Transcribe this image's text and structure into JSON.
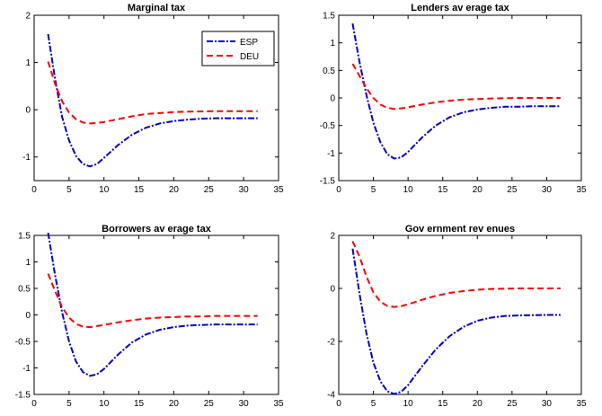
{
  "chart_data": [
    {
      "type": "line",
      "title": "Marginal tax",
      "xlim": [
        0,
        35
      ],
      "ylim": [
        -1.5,
        2
      ],
      "xticks": [
        0,
        5,
        10,
        15,
        20,
        25,
        30,
        35
      ],
      "yticks": [
        -1,
        0,
        1,
        2
      ],
      "grid": false,
      "legend": "top-right",
      "series": [
        {
          "name": "ESP",
          "color": "#0000cc",
          "style": "dash-dot",
          "x": [
            2,
            3,
            4,
            5,
            6,
            7,
            8,
            9,
            10,
            12,
            14,
            16,
            18,
            20,
            22,
            24,
            26,
            28,
            30,
            32
          ],
          "y": [
            1.6,
            0.65,
            -0.15,
            -0.65,
            -0.98,
            -1.15,
            -1.2,
            -1.15,
            -1.02,
            -0.75,
            -0.53,
            -0.38,
            -0.29,
            -0.24,
            -0.21,
            -0.19,
            -0.18,
            -0.18,
            -0.18,
            -0.18
          ]
        },
        {
          "name": "DEU",
          "color": "#ff0000",
          "style": "dashed",
          "x": [
            2,
            3,
            4,
            5,
            6,
            7,
            8,
            9,
            10,
            12,
            14,
            16,
            18,
            20,
            22,
            24,
            26,
            28,
            30,
            32
          ],
          "y": [
            1.02,
            0.55,
            0.18,
            -0.06,
            -0.2,
            -0.27,
            -0.29,
            -0.28,
            -0.26,
            -0.2,
            -0.14,
            -0.09,
            -0.07,
            -0.05,
            -0.04,
            -0.035,
            -0.03,
            -0.03,
            -0.03,
            -0.03
          ]
        }
      ]
    },
    {
      "type": "line",
      "title": "Lenders av erage tax",
      "xlim": [
        0,
        35
      ],
      "ylim": [
        -1.5,
        1.5
      ],
      "xticks": [
        0,
        5,
        10,
        15,
        20,
        25,
        30,
        35
      ],
      "yticks": [
        -1.5,
        -1,
        -0.5,
        0,
        0.5,
        1,
        1.5
      ],
      "grid": false,
      "series": [
        {
          "color": "#0000cc",
          "style": "dash-dot",
          "x": [
            2,
            3,
            4,
            5,
            6,
            7,
            8,
            9,
            10,
            12,
            14,
            16,
            18,
            20,
            22,
            24,
            26,
            28,
            30,
            32
          ],
          "y": [
            1.35,
            0.65,
            0.05,
            -0.45,
            -0.8,
            -1.02,
            -1.1,
            -1.08,
            -0.98,
            -0.72,
            -0.5,
            -0.35,
            -0.26,
            -0.21,
            -0.18,
            -0.16,
            -0.16,
            -0.15,
            -0.15,
            -0.15
          ]
        },
        {
          "color": "#ff0000",
          "style": "dashed",
          "x": [
            2,
            3,
            4,
            5,
            6,
            7,
            8,
            9,
            10,
            12,
            14,
            16,
            18,
            20,
            22,
            24,
            26,
            28,
            30,
            32
          ],
          "y": [
            0.62,
            0.4,
            0.18,
            0.0,
            -0.12,
            -0.18,
            -0.2,
            -0.19,
            -0.17,
            -0.12,
            -0.08,
            -0.05,
            -0.03,
            -0.02,
            -0.01,
            -0.005,
            0.0,
            0.0,
            0.0,
            0.0
          ]
        }
      ]
    },
    {
      "type": "line",
      "title": "Borrowers av erage tax",
      "xlim": [
        0,
        35
      ],
      "ylim": [
        -1.5,
        1.5
      ],
      "xticks": [
        0,
        5,
        10,
        15,
        20,
        25,
        30,
        35
      ],
      "yticks": [
        -1.5,
        -1,
        -0.5,
        0,
        0.5,
        1,
        1.5
      ],
      "grid": false,
      "series": [
        {
          "color": "#0000cc",
          "style": "dash-dot",
          "x": [
            2,
            3,
            4,
            5,
            6,
            7,
            8,
            9,
            10,
            12,
            14,
            16,
            18,
            20,
            22,
            24,
            26,
            28,
            30,
            32
          ],
          "y": [
            1.55,
            0.75,
            0.05,
            -0.5,
            -0.88,
            -1.08,
            -1.15,
            -1.12,
            -1.02,
            -0.75,
            -0.52,
            -0.37,
            -0.28,
            -0.23,
            -0.2,
            -0.19,
            -0.18,
            -0.18,
            -0.18,
            -0.18
          ]
        },
        {
          "color": "#ff0000",
          "style": "dashed",
          "x": [
            2,
            3,
            4,
            5,
            6,
            7,
            8,
            9,
            10,
            12,
            14,
            16,
            18,
            20,
            22,
            24,
            26,
            28,
            30,
            32
          ],
          "y": [
            0.78,
            0.45,
            0.15,
            -0.05,
            -0.17,
            -0.22,
            -0.23,
            -0.21,
            -0.19,
            -0.14,
            -0.1,
            -0.07,
            -0.05,
            -0.04,
            -0.03,
            -0.03,
            -0.02,
            -0.02,
            -0.02,
            -0.02
          ]
        }
      ]
    },
    {
      "type": "line",
      "title": "Gov ernment rev enues",
      "xlim": [
        0,
        35
      ],
      "ylim": [
        -4,
        2
      ],
      "xticks": [
        0,
        5,
        10,
        15,
        20,
        25,
        30,
        35
      ],
      "yticks": [
        -4,
        -2,
        0,
        2
      ],
      "grid": false,
      "series": [
        {
          "color": "#0000cc",
          "style": "dash-dot",
          "x": [
            2,
            3,
            4,
            5,
            6,
            7,
            8,
            9,
            10,
            12,
            14,
            16,
            18,
            20,
            22,
            24,
            26,
            28,
            30,
            32
          ],
          "y": [
            1.5,
            -0.2,
            -1.7,
            -2.8,
            -3.5,
            -3.88,
            -3.98,
            -3.9,
            -3.65,
            -2.95,
            -2.3,
            -1.8,
            -1.45,
            -1.22,
            -1.1,
            -1.04,
            -1.02,
            -1.01,
            -1.0,
            -1.0
          ]
        },
        {
          "color": "#ff0000",
          "style": "dashed",
          "x": [
            2,
            3,
            4,
            5,
            6,
            7,
            8,
            9,
            10,
            12,
            14,
            16,
            18,
            20,
            22,
            24,
            26,
            28,
            30,
            32
          ],
          "y": [
            1.78,
            1.2,
            0.45,
            -0.15,
            -0.5,
            -0.66,
            -0.7,
            -0.67,
            -0.6,
            -0.43,
            -0.28,
            -0.17,
            -0.1,
            -0.05,
            -0.02,
            -0.01,
            0.0,
            0.0,
            0.0,
            0.0
          ]
        }
      ]
    }
  ]
}
